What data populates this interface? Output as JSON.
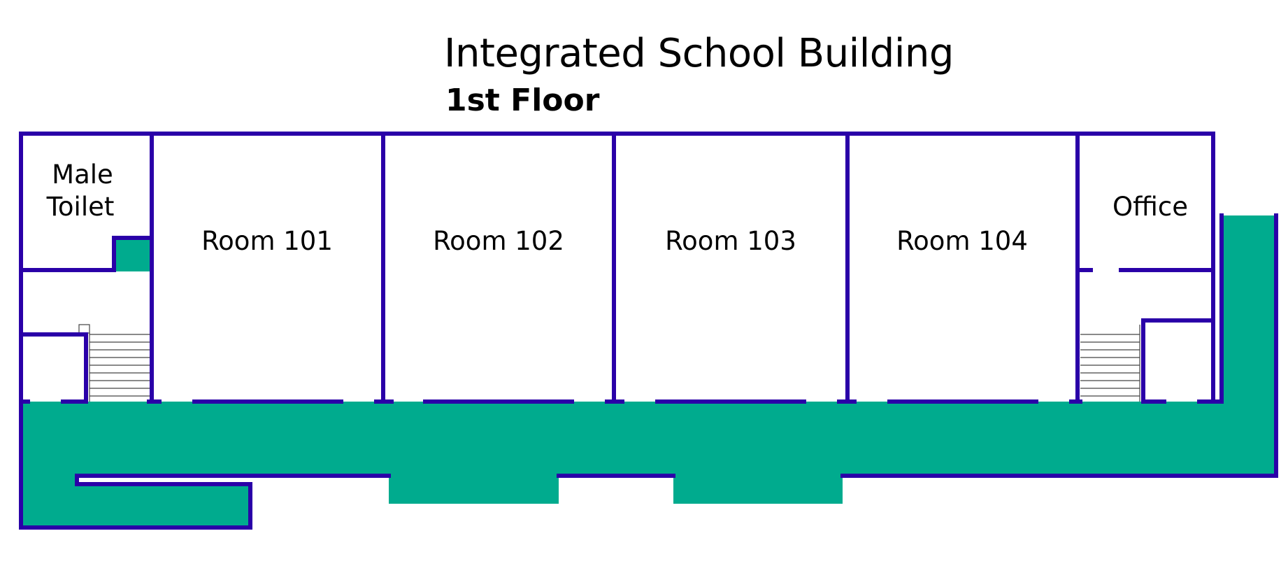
{
  "header": {
    "title": "Integrated School Building",
    "subtitle": "1st Floor"
  },
  "rooms": {
    "male_toilet_line1": "Male",
    "male_toilet_line2": "Toilet",
    "room_101": "Room 101",
    "room_102": "Room 102",
    "room_103": "Room 103",
    "room_104": "Room 104",
    "office": "Office"
  },
  "colors": {
    "wall": "#2a00a8",
    "corridor": "#00ab8e",
    "text": "#000000"
  }
}
